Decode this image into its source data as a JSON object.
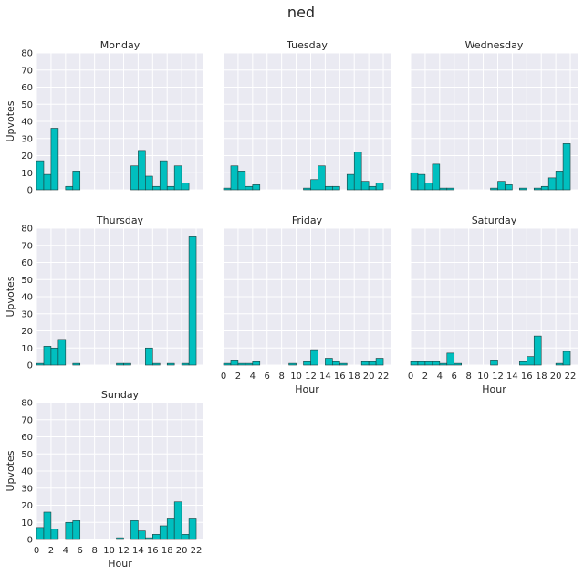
{
  "chart_data": {
    "type": "bar",
    "title": "ned",
    "ylabel": "Upvotes",
    "xlabel": "Hour",
    "ylim": [
      0,
      80
    ],
    "xlim": [
      0,
      23
    ],
    "bin_width": 1,
    "yticks": [
      0,
      10,
      20,
      30,
      40,
      50,
      60,
      70,
      80
    ],
    "xticks": [
      0,
      2,
      4,
      6,
      8,
      10,
      12,
      14,
      16,
      18,
      20,
      22
    ],
    "grid": true,
    "bar_color": "#00bfbf",
    "bar_edge_color": "#1f3b3b",
    "plot_bg": "#eaeaf2",
    "panels": [
      {
        "title": "Monday",
        "values": [
          17,
          9,
          36,
          0,
          2,
          11,
          0,
          0,
          0,
          0,
          0,
          0,
          0,
          14,
          23,
          8,
          2,
          17,
          2,
          14,
          4,
          0,
          0
        ]
      },
      {
        "title": "Tuesday",
        "values": [
          1,
          14,
          11,
          2,
          3,
          0,
          0,
          0,
          0,
          0,
          0,
          1,
          6,
          14,
          2,
          2,
          0,
          9,
          22,
          5,
          2,
          4,
          0
        ]
      },
      {
        "title": "Wednesday",
        "values": [
          10,
          9,
          4,
          15,
          1,
          1,
          0,
          0,
          0,
          0,
          0,
          1,
          5,
          3,
          0,
          1,
          0,
          1,
          2,
          7,
          11,
          27,
          0
        ]
      },
      {
        "title": "Thursday",
        "values": [
          1,
          11,
          10,
          15,
          0,
          1,
          0,
          0,
          0,
          0,
          0,
          1,
          1,
          0,
          0,
          10,
          1,
          0,
          1,
          0,
          1,
          75,
          0
        ]
      },
      {
        "title": "Friday",
        "values": [
          1,
          3,
          1,
          1,
          2,
          0,
          0,
          0,
          0,
          1,
          0,
          2,
          9,
          0,
          4,
          2,
          1,
          0,
          0,
          2,
          2,
          4,
          0
        ]
      },
      {
        "title": "Saturday",
        "values": [
          2,
          2,
          2,
          2,
          1,
          7,
          1,
          0,
          0,
          0,
          0,
          3,
          0,
          0,
          0,
          2,
          5,
          17,
          0,
          0,
          1,
          8,
          0
        ]
      },
      {
        "title": "Sunday",
        "values": [
          7,
          16,
          6,
          0,
          10,
          11,
          0,
          0,
          0,
          0,
          0,
          1,
          0,
          11,
          5,
          1,
          3,
          8,
          12,
          22,
          3,
          12,
          0
        ]
      }
    ]
  }
}
